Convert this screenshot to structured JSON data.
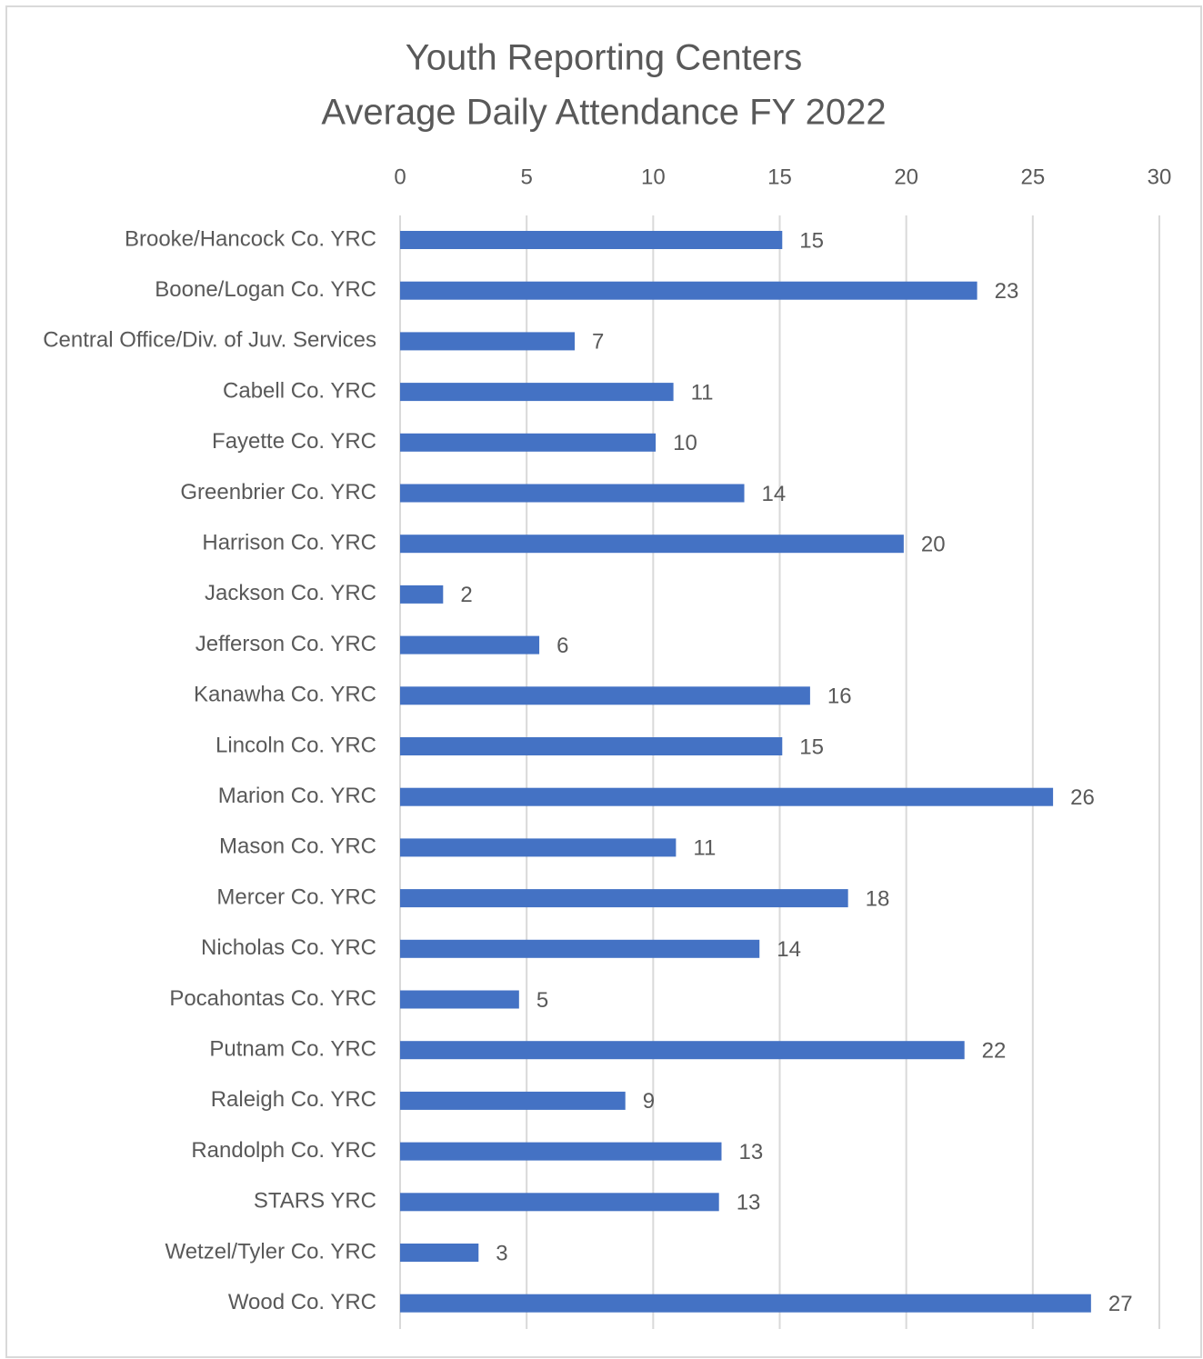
{
  "chart_data": {
    "type": "bar",
    "orientation": "horizontal",
    "title": [
      "Youth Reporting Centers",
      "Average Daily Attendance FY 2022"
    ],
    "categories": [
      "Brooke/Hancock Co. YRC",
      "Boone/Logan Co. YRC",
      "Central Office/Div. of Juv. Services",
      "Cabell Co. YRC",
      "Fayette Co. YRC",
      "Greenbrier Co. YRC",
      "Harrison Co. YRC",
      "Jackson Co. YRC",
      "Jefferson Co. YRC",
      "Kanawha Co. YRC",
      "Lincoln Co. YRC",
      "Marion Co. YRC",
      "Mason Co. YRC",
      "Mercer Co. YRC",
      "Nicholas Co. YRC",
      "Pocahontas Co. YRC",
      "Putnam Co. YRC",
      "Raleigh Co. YRC",
      "Randolph Co. YRC",
      "STARS YRC",
      "Wetzel/Tyler Co. YRC",
      "Wood Co. YRC"
    ],
    "values": [
      15.1,
      22.8,
      6.9,
      10.8,
      10.1,
      13.6,
      19.9,
      1.7,
      5.5,
      16.2,
      15.1,
      25.8,
      10.9,
      17.7,
      14.2,
      4.7,
      22.3,
      8.9,
      12.7,
      12.6,
      3.1,
      27.3
    ],
    "value_labels": [
      "15",
      "23",
      "7",
      "11",
      "10",
      "14",
      "20",
      "2",
      "6",
      "16",
      "15",
      "26",
      "11",
      "18",
      "14",
      "5",
      "22",
      "9",
      "13",
      "13",
      "3",
      "27"
    ],
    "color": "#4472c4",
    "xlim": [
      0,
      30
    ],
    "xticks": [
      0,
      5,
      10,
      15,
      20,
      25,
      30
    ],
    "grid": true
  }
}
